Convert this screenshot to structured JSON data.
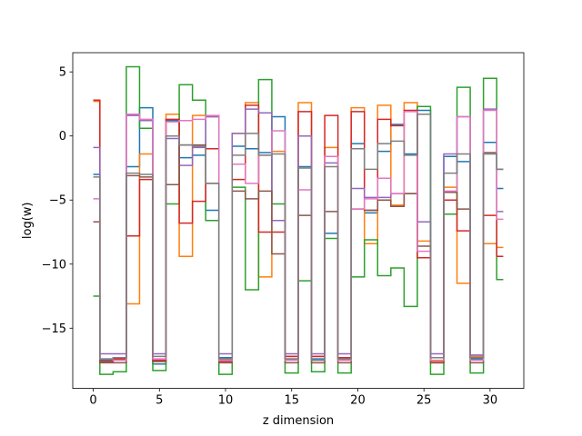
{
  "chart_data": {
    "type": "line",
    "drawstyle": "steps-mid",
    "title": "",
    "xlabel": "z dimension",
    "ylabel": "log(w)",
    "xlim": [
      -1.55,
      32.55
    ],
    "ylim": [
      -19.7,
      6.5
    ],
    "xticks": [
      0,
      5,
      10,
      15,
      20,
      25,
      30
    ],
    "yticks": [
      -15,
      -10,
      -5,
      0,
      5
    ],
    "grid": false,
    "legend": "none",
    "x": [
      0,
      1,
      2,
      3,
      4,
      5,
      6,
      7,
      8,
      9,
      10,
      11,
      12,
      13,
      14,
      15,
      16,
      17,
      18,
      19,
      20,
      21,
      22,
      23,
      24,
      25,
      26,
      27,
      28,
      29,
      30,
      31
    ],
    "series": [
      {
        "color": "#1f77b4",
        "values": [
          -3.0,
          -17.5,
          -17.4,
          -2.4,
          2.2,
          -17.8,
          1.2,
          -1.7,
          -1.5,
          -5.8,
          -17.3,
          -0.8,
          -1.0,
          -1.3,
          1.5,
          -17.4,
          -2.4,
          -17.4,
          -7.6,
          -17.4,
          -0.6,
          -6.0,
          -1.2,
          0.9,
          -1.4,
          2.0,
          -17.6,
          -1.6,
          -2.0,
          -17.4,
          -0.5,
          -4.1
        ]
      },
      {
        "color": "#ff7f0e",
        "values": [
          2.7,
          -17.6,
          -17.4,
          -13.1,
          -1.4,
          -17.6,
          1.7,
          -9.4,
          1.6,
          1.5,
          -17.4,
          0.2,
          2.6,
          -11.0,
          -1.2,
          -17.2,
          2.6,
          -17.2,
          -0.9,
          -17.5,
          2.2,
          -8.4,
          2.4,
          -5.4,
          2.6,
          -8.2,
          -17.6,
          -4.0,
          -11.5,
          -17.2,
          -8.4,
          -8.7
        ]
      },
      {
        "color": "#2ca02c",
        "values": [
          -12.5,
          -18.6,
          -18.4,
          5.4,
          0.6,
          -18.3,
          -5.3,
          4.0,
          2.8,
          -6.6,
          -18.6,
          -4.0,
          -12.0,
          4.4,
          -5.3,
          -18.5,
          -11.3,
          -18.4,
          -8.0,
          -18.5,
          -11.0,
          -8.1,
          -10.9,
          -10.3,
          -13.3,
          2.3,
          -18.6,
          -6.1,
          3.8,
          -18.5,
          4.5,
          -11.2
        ]
      },
      {
        "color": "#d62728",
        "values": [
          2.8,
          -17.6,
          -17.4,
          -7.8,
          -3.4,
          -17.5,
          1.3,
          -6.8,
          -5.1,
          -1.0,
          -17.6,
          -3.4,
          2.4,
          -7.5,
          -7.5,
          -17.2,
          1.9,
          -17.2,
          1.6,
          -17.3,
          1.9,
          -5.8,
          1.3,
          0.8,
          2.0,
          -9.5,
          -17.7,
          -5.0,
          -7.4,
          -17.3,
          -6.2,
          -9.4
        ]
      },
      {
        "color": "#9467bd",
        "values": [
          -0.9,
          -17.0,
          -17.0,
          1.6,
          1.2,
          -17.0,
          -0.2,
          -2.3,
          -0.9,
          1.5,
          -17.0,
          0.2,
          2.1,
          1.8,
          -6.6,
          -17.0,
          0.0,
          -17.0,
          -2.1,
          -17.0,
          -4.1,
          -4.8,
          -4.8,
          -4.5,
          -4.5,
          -6.7,
          -17.0,
          -1.4,
          1.5,
          -17.1,
          2.1,
          -5.9
        ]
      },
      {
        "color": "#8c564b",
        "values": [
          -6.7,
          -17.7,
          -17.7,
          -3.1,
          -3.2,
          -17.6,
          -3.8,
          -0.7,
          -0.7,
          -3.7,
          -17.7,
          -4.3,
          -4.9,
          -4.3,
          -9.2,
          -17.7,
          -6.2,
          -17.7,
          -5.9,
          -17.7,
          -5.7,
          -5.8,
          -5.0,
          -5.5,
          -4.5,
          -8.6,
          -17.7,
          -4.4,
          -5.7,
          -17.7,
          -1.3,
          -2.6
        ]
      },
      {
        "color": "#e377c2",
        "values": [
          -4.9,
          -17.4,
          -17.5,
          1.7,
          1.3,
          -17.4,
          1.1,
          1.2,
          1.3,
          1.6,
          -17.5,
          -2.2,
          -3.7,
          -1.5,
          0.4,
          -17.5,
          -4.2,
          -17.5,
          -1.6,
          -17.5,
          -5.7,
          -4.9,
          -3.3,
          -4.5,
          1.9,
          -9.0,
          -17.5,
          -4.3,
          1.5,
          -17.5,
          2.0,
          -6.5
        ]
      },
      {
        "color": "#7f7f7f",
        "values": [
          -3.2,
          -17.4,
          -17.3,
          -2.9,
          -3.0,
          -17.2,
          0.0,
          -0.7,
          -0.8,
          -3.7,
          -17.4,
          -1.5,
          0.2,
          -1.5,
          -1.4,
          -17.4,
          -2.5,
          -17.5,
          -2.4,
          -17.4,
          -1.0,
          -2.6,
          -0.6,
          -0.4,
          -1.5,
          1.7,
          -17.3,
          -2.9,
          -1.4,
          -17.3,
          -1.4,
          -2.6
        ]
      }
    ]
  }
}
